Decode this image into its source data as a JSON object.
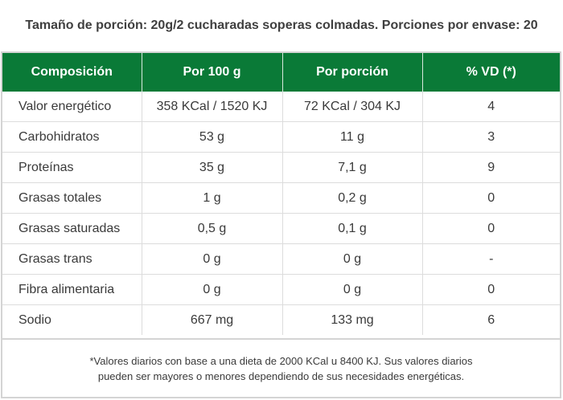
{
  "serving_info": "Tamaño de porción: 20g/2 cucharadas soperas colmadas. Porciones por envase: 20",
  "table": {
    "headers": [
      "Composición",
      "Por 100 g",
      "Por porción",
      "% VD (*)"
    ],
    "rows": [
      [
        "Valor energético",
        "358 KCal / 1520 KJ",
        "72 KCal / 304 KJ",
        "4"
      ],
      [
        "Carbohidratos",
        "53 g",
        "11 g",
        "3"
      ],
      [
        "Proteínas",
        "35 g",
        "7,1 g",
        "9"
      ],
      [
        "Grasas totales",
        "1 g",
        "0,2 g",
        "0"
      ],
      [
        "Grasas saturadas",
        "0,5 g",
        "0,1 g",
        "0"
      ],
      [
        "Grasas trans",
        "0 g",
        "0 g",
        "-"
      ],
      [
        "Fibra alimentaria",
        "0 g",
        "0 g",
        "0"
      ],
      [
        "Sodio",
        "667 mg",
        "133 mg",
        "6"
      ]
    ]
  },
  "footnote": {
    "line1": "*Valores diarios con base a una dieta de 2000 KCal u 8400 KJ. Sus valores diarios",
    "line2": "pueden ser mayores o menores dependiendo de sus necesidades energéticas."
  },
  "colors": {
    "header_green": "#0a7a37",
    "border_gray": "#d4d4d4",
    "text": "#3a3a3a"
  }
}
